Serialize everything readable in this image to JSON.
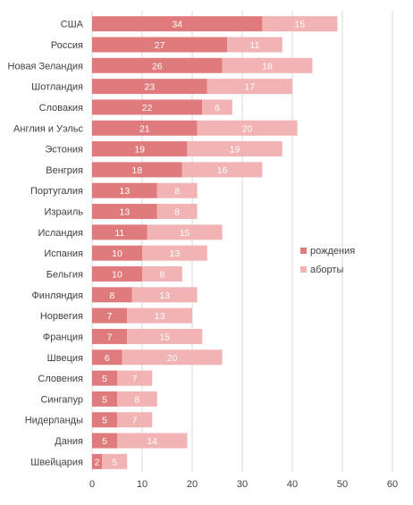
{
  "chart_data": {
    "type": "bar",
    "orientation": "horizontal",
    "stacked": true,
    "categories": [
      "США",
      "Россия",
      "Новая Зеландия",
      "Шотландия",
      "Словакия",
      "Англия и Уэльс",
      "Эстония",
      "Венгрия",
      "Португалия",
      "Израиль",
      "Исландия",
      "Испания",
      "Бельгия",
      "Финляндия",
      "Норвегия",
      "Франция",
      "Швеция",
      "Словения",
      "Сингапур",
      "Нидерланды",
      "Дания",
      "Швейцария"
    ],
    "series": [
      {
        "name": "рождения",
        "color": "#E07B7D",
        "values": [
          34,
          27,
          26,
          23,
          22,
          21,
          19,
          18,
          13,
          13,
          11,
          10,
          10,
          8,
          7,
          7,
          6,
          5,
          5,
          5,
          5,
          2
        ]
      },
      {
        "name": "аборты",
        "color": "#F2B3B4",
        "values": [
          15,
          11,
          18,
          17,
          6,
          20,
          19,
          16,
          8,
          8,
          15,
          13,
          8,
          13,
          13,
          15,
          20,
          7,
          8,
          7,
          14,
          5
        ]
      }
    ],
    "xlim": [
      0,
      60
    ],
    "xticks": [
      0,
      10,
      20,
      30,
      40,
      50,
      60
    ],
    "grid": "vertical",
    "legend_position": "right",
    "title": "",
    "xlabel": "",
    "ylabel": ""
  }
}
